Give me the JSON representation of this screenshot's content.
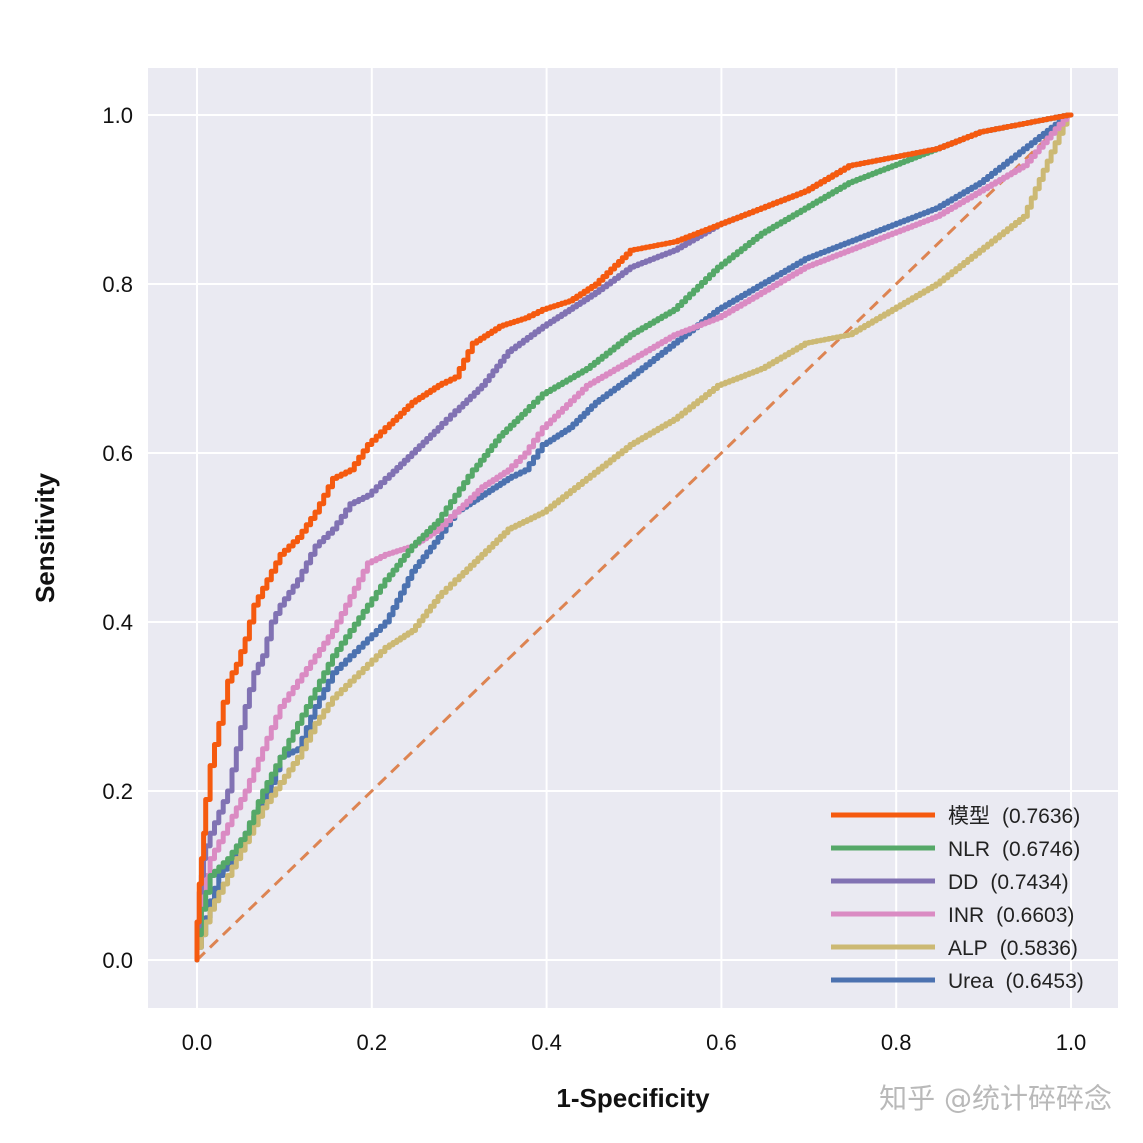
{
  "watermark": "知乎 @统计碎碎念",
  "chart_data": {
    "type": "line",
    "title": "",
    "xlabel": "1-Specificity",
    "ylabel": "Sensitivity",
    "xlim": [
      0,
      1
    ],
    "ylim": [
      0,
      1
    ],
    "grid": true,
    "legend_position": "bottom-right",
    "x_ticks": [
      "0.0",
      "0.2",
      "0.4",
      "0.6",
      "0.8",
      "1.0"
    ],
    "y_ticks": [
      "0.0",
      "0.2",
      "0.4",
      "0.6",
      "0.8",
      "1.0"
    ],
    "reference_line": {
      "name": "chance",
      "color": "#dd8452",
      "x": [
        0,
        1
      ],
      "y": [
        0,
        1
      ]
    },
    "series": [
      {
        "name": "模型",
        "auc": "(0.7636)",
        "color": "#f55a0f",
        "x": [
          0,
          0.005,
          0.01,
          0.02,
          0.03,
          0.04,
          0.05,
          0.06,
          0.07,
          0.08,
          0.1,
          0.12,
          0.14,
          0.16,
          0.18,
          0.2,
          0.22,
          0.25,
          0.28,
          0.3,
          0.32,
          0.35,
          0.38,
          0.4,
          0.43,
          0.46,
          0.5,
          0.55,
          0.6,
          0.65,
          0.7,
          0.75,
          0.8,
          0.85,
          0.9,
          0.95,
          1.0
        ],
        "y": [
          0,
          0.09,
          0.15,
          0.23,
          0.28,
          0.33,
          0.35,
          0.38,
          0.42,
          0.44,
          0.48,
          0.5,
          0.53,
          0.57,
          0.58,
          0.61,
          0.63,
          0.66,
          0.68,
          0.69,
          0.73,
          0.75,
          0.76,
          0.77,
          0.78,
          0.8,
          0.84,
          0.85,
          0.87,
          0.89,
          0.91,
          0.94,
          0.95,
          0.96,
          0.98,
          0.99,
          1.0
        ]
      },
      {
        "name": "NLR",
        "auc": "(0.6746)",
        "color": "#55a868",
        "x": [
          0,
          0.01,
          0.02,
          0.04,
          0.06,
          0.08,
          0.1,
          0.12,
          0.14,
          0.16,
          0.18,
          0.2,
          0.22,
          0.25,
          0.28,
          0.3,
          0.32,
          0.35,
          0.38,
          0.4,
          0.45,
          0.5,
          0.55,
          0.6,
          0.65,
          0.7,
          0.75,
          0.8,
          0.85,
          0.9,
          0.95,
          1.0
        ],
        "y": [
          0,
          0.06,
          0.1,
          0.12,
          0.15,
          0.2,
          0.24,
          0.28,
          0.32,
          0.36,
          0.39,
          0.42,
          0.45,
          0.49,
          0.52,
          0.55,
          0.58,
          0.62,
          0.65,
          0.67,
          0.7,
          0.74,
          0.77,
          0.82,
          0.86,
          0.89,
          0.92,
          0.94,
          0.96,
          0.98,
          0.99,
          1.0
        ]
      },
      {
        "name": "DD",
        "auc": "(0.7434)",
        "color": "#8172b3",
        "x": [
          0,
          0.005,
          0.01,
          0.02,
          0.04,
          0.06,
          0.07,
          0.08,
          0.09,
          0.1,
          0.12,
          0.14,
          0.16,
          0.18,
          0.2,
          0.22,
          0.25,
          0.28,
          0.3,
          0.33,
          0.36,
          0.4,
          0.43,
          0.46,
          0.5,
          0.55,
          0.6,
          0.65,
          0.7,
          0.75,
          0.8,
          0.85,
          0.9,
          0.95,
          1.0
        ],
        "y": [
          0,
          0.08,
          0.12,
          0.15,
          0.2,
          0.3,
          0.34,
          0.36,
          0.4,
          0.42,
          0.45,
          0.49,
          0.51,
          0.54,
          0.55,
          0.57,
          0.6,
          0.63,
          0.65,
          0.68,
          0.72,
          0.75,
          0.77,
          0.79,
          0.82,
          0.84,
          0.87,
          0.89,
          0.91,
          0.94,
          0.95,
          0.96,
          0.98,
          0.99,
          1.0
        ]
      },
      {
        "name": "INR",
        "auc": "(0.6603)",
        "color": "#da8bc3",
        "x": [
          0,
          0.01,
          0.02,
          0.04,
          0.06,
          0.08,
          0.1,
          0.12,
          0.14,
          0.16,
          0.18,
          0.2,
          0.22,
          0.25,
          0.28,
          0.3,
          0.33,
          0.36,
          0.38,
          0.4,
          0.45,
          0.5,
          0.55,
          0.6,
          0.65,
          0.7,
          0.75,
          0.8,
          0.85,
          0.9,
          0.95,
          1.0
        ],
        "y": [
          0,
          0.08,
          0.12,
          0.16,
          0.2,
          0.25,
          0.3,
          0.33,
          0.36,
          0.39,
          0.43,
          0.47,
          0.48,
          0.49,
          0.51,
          0.53,
          0.56,
          0.58,
          0.6,
          0.63,
          0.68,
          0.71,
          0.74,
          0.76,
          0.79,
          0.82,
          0.84,
          0.86,
          0.88,
          0.91,
          0.94,
          1.0
        ]
      },
      {
        "name": "ALP",
        "auc": "(0.5836)",
        "color": "#ccb974",
        "x": [
          0,
          0.01,
          0.02,
          0.04,
          0.06,
          0.08,
          0.1,
          0.12,
          0.14,
          0.16,
          0.18,
          0.2,
          0.22,
          0.25,
          0.28,
          0.3,
          0.33,
          0.36,
          0.4,
          0.45,
          0.5,
          0.55,
          0.6,
          0.65,
          0.7,
          0.75,
          0.8,
          0.85,
          0.9,
          0.95,
          1.0
        ],
        "y": [
          0,
          0.03,
          0.06,
          0.1,
          0.14,
          0.18,
          0.21,
          0.24,
          0.28,
          0.31,
          0.33,
          0.35,
          0.37,
          0.39,
          0.43,
          0.45,
          0.48,
          0.51,
          0.53,
          0.57,
          0.61,
          0.64,
          0.68,
          0.7,
          0.73,
          0.74,
          0.77,
          0.8,
          0.84,
          0.88,
          1.0
        ]
      },
      {
        "name": "Urea",
        "auc": "(0.6453)",
        "color": "#4c72b0",
        "x": [
          0,
          0.01,
          0.02,
          0.03,
          0.05,
          0.07,
          0.09,
          0.1,
          0.12,
          0.14,
          0.16,
          0.18,
          0.2,
          0.22,
          0.25,
          0.28,
          0.3,
          0.33,
          0.36,
          0.38,
          0.4,
          0.43,
          0.46,
          0.5,
          0.55,
          0.6,
          0.65,
          0.7,
          0.75,
          0.8,
          0.85,
          0.9,
          0.95,
          1.0
        ],
        "y": [
          0,
          0.03,
          0.07,
          0.1,
          0.13,
          0.17,
          0.21,
          0.24,
          0.25,
          0.3,
          0.34,
          0.36,
          0.38,
          0.4,
          0.46,
          0.5,
          0.53,
          0.55,
          0.57,
          0.58,
          0.61,
          0.63,
          0.66,
          0.69,
          0.73,
          0.77,
          0.8,
          0.83,
          0.85,
          0.87,
          0.89,
          0.92,
          0.96,
          1.0
        ]
      }
    ]
  }
}
